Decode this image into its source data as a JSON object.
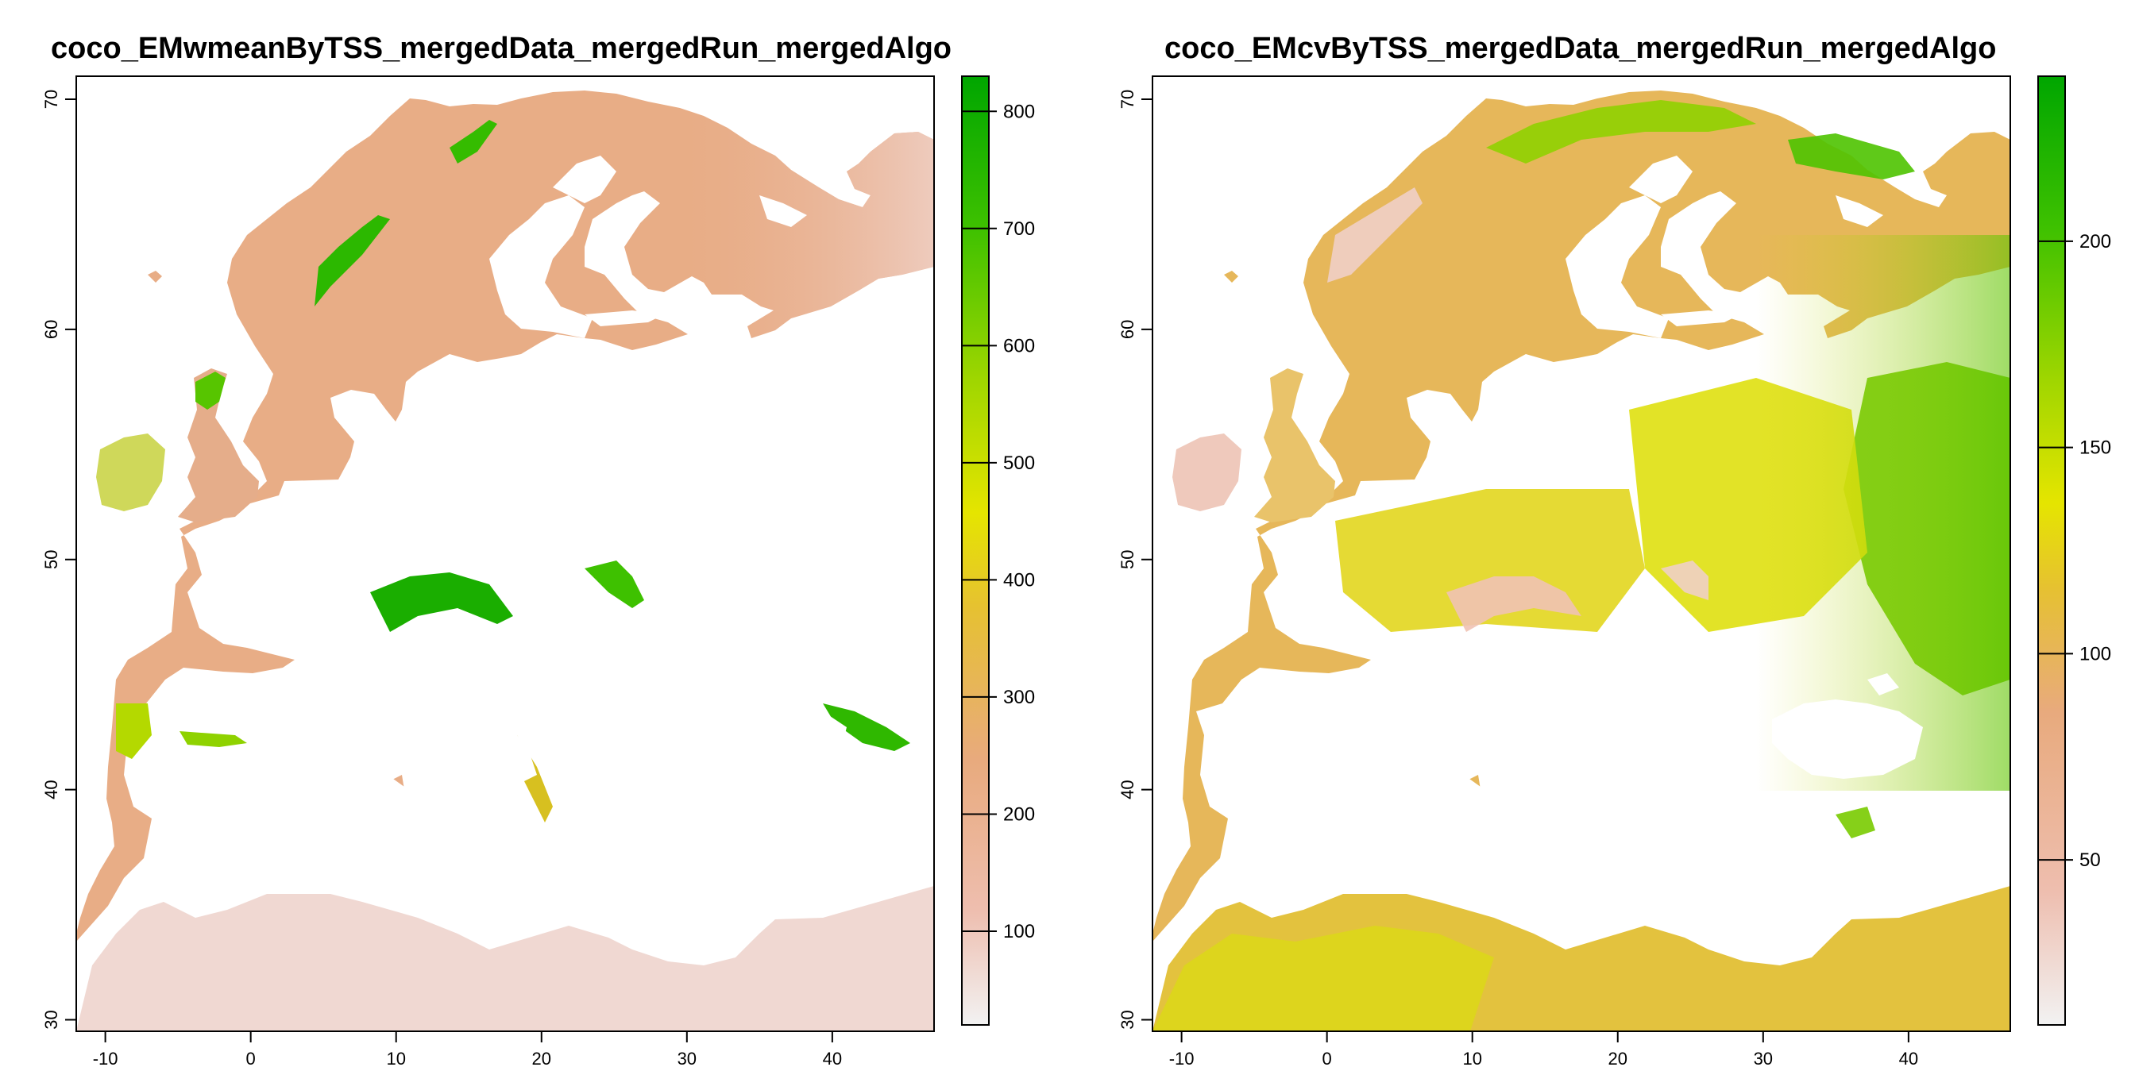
{
  "panels": [
    {
      "title": "coco_EMwmeanByTSS_mergedData_mergedRun_mergedAlgo",
      "x_ticks": [
        -10,
        0,
        10,
        20,
        30,
        40
      ],
      "y_ticks": [
        30,
        40,
        50,
        60,
        70
      ],
      "xlim": [
        -12,
        47
      ],
      "ylim": [
        29.5,
        71
      ],
      "legend_range": [
        20,
        830
      ],
      "legend_ticks": [
        100,
        200,
        300,
        400,
        500,
        600,
        700,
        800
      ],
      "colors": [
        "#f2f2f2",
        "#eebeaf",
        "#e8aa7d",
        "#e6c131",
        "#e5e500",
        "#9fd600",
        "#3ec100",
        "#00a600"
      ]
    },
    {
      "title": "coco_EMcvByTSS_mergedData_mergedRun_mergedAlgo",
      "x_ticks": [
        -10,
        0,
        10,
        20,
        30,
        40
      ],
      "y_ticks": [
        30,
        40,
        50,
        60,
        70
      ],
      "xlim": [
        -12,
        47
      ],
      "ylim": [
        29.5,
        71
      ],
      "legend_range": [
        10,
        240
      ],
      "legend_ticks": [
        50,
        100,
        150,
        200
      ],
      "colors": [
        "#f2f2f2",
        "#eebeaf",
        "#e8aa7d",
        "#e6c131",
        "#e5e500",
        "#9fd600",
        "#3ec100",
        "#00a600"
      ]
    }
  ]
}
